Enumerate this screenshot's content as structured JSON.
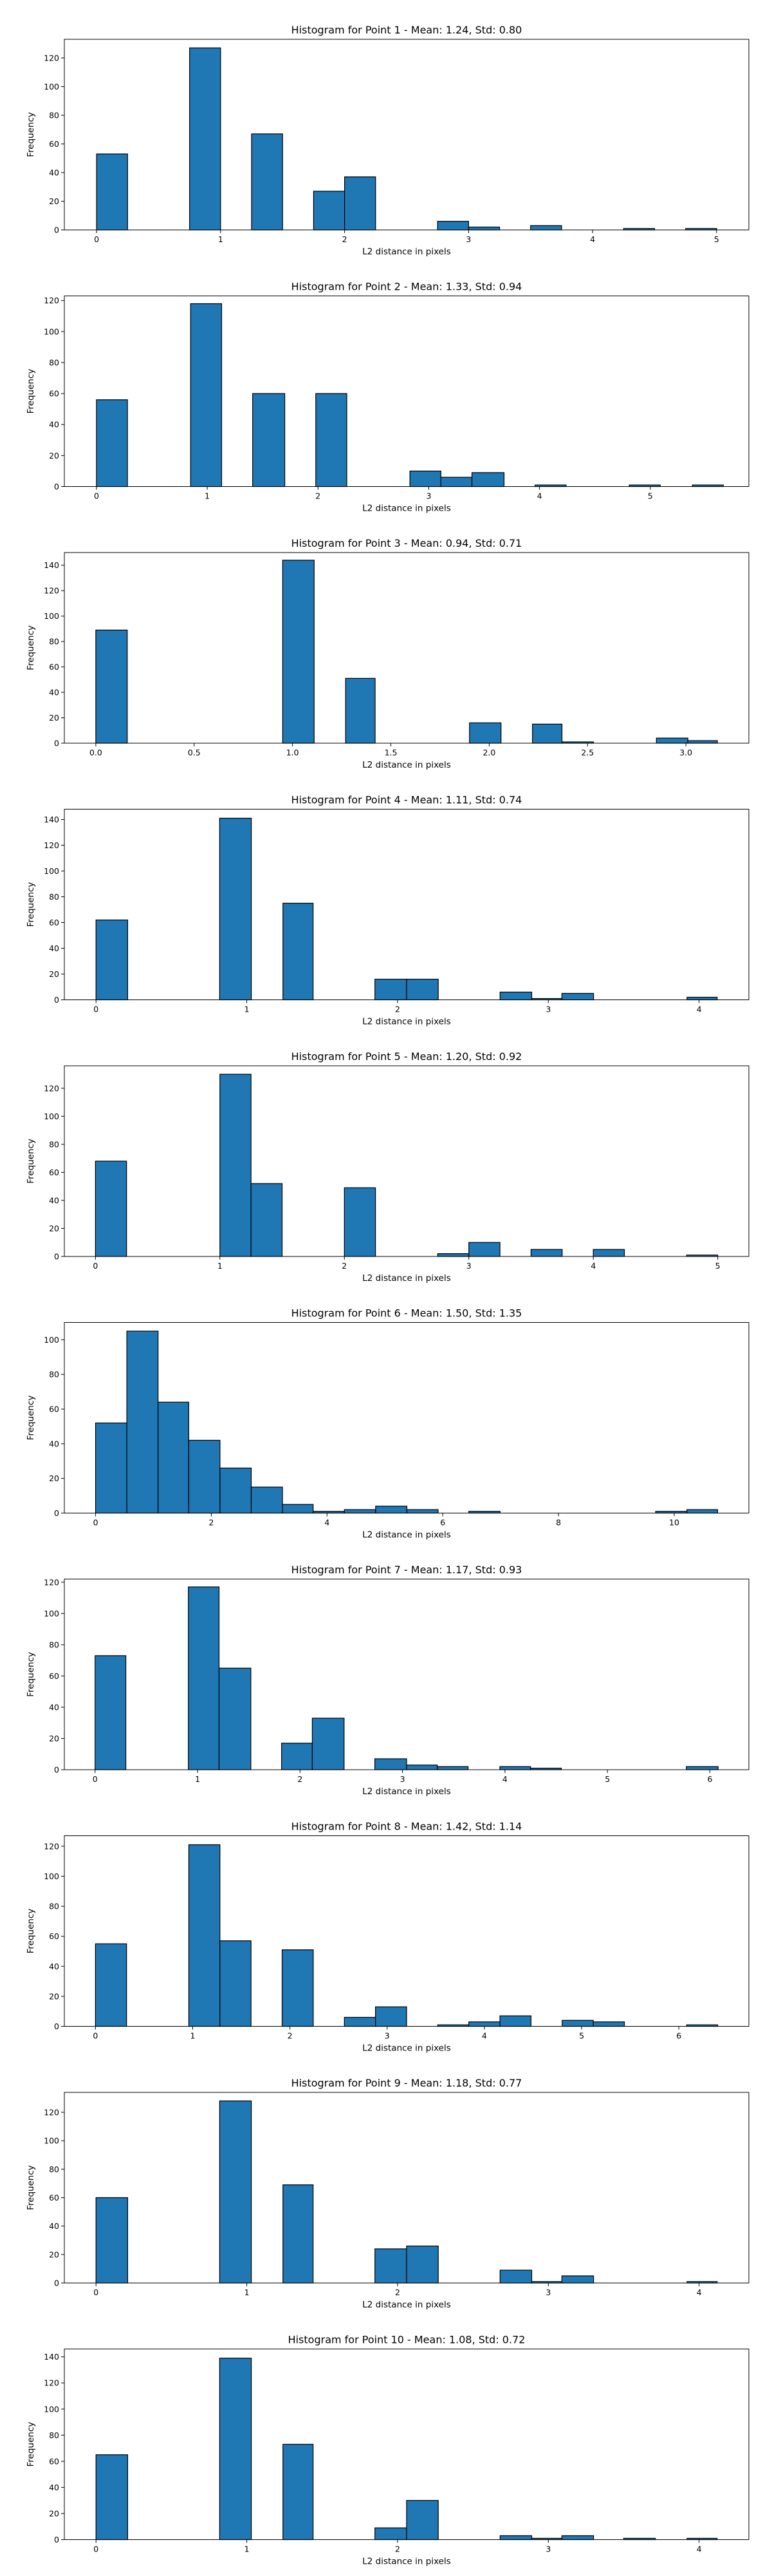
{
  "chart_data": [
    {
      "type": "bar",
      "title": "Histogram for Point 1 - Mean: 1.24, Std: 0.80",
      "xlabel": "L2 distance in pixels",
      "ylabel": "Frequency",
      "xlim": [
        -0.26,
        5.26
      ],
      "ylim": [
        0,
        133
      ],
      "xticks": [
        0,
        1,
        2,
        3,
        4,
        5
      ],
      "xtick_labels": [
        "0",
        "1",
        "2",
        "3",
        "4",
        "5"
      ],
      "yticks": [
        0,
        20,
        40,
        60,
        80,
        100,
        120
      ],
      "bins": [
        [
          0,
          0.25,
          53
        ],
        [
          0.75,
          1,
          127
        ],
        [
          1.25,
          1.5,
          67
        ],
        [
          1.75,
          2,
          27
        ],
        [
          2,
          2.25,
          37
        ],
        [
          2.75,
          3,
          6
        ],
        [
          3,
          3.25,
          2
        ],
        [
          3.5,
          3.75,
          3
        ],
        [
          4.25,
          4.5,
          1
        ],
        [
          4.75,
          5,
          1
        ]
      ]
    },
    {
      "type": "bar",
      "title": "Histogram for Point 2 - Mean: 1.33, Std: 0.94",
      "xlabel": "L2 distance in pixels",
      "ylabel": "Frequency",
      "xlim": [
        -0.29,
        5.89
      ],
      "ylim": [
        0,
        123
      ],
      "xticks": [
        0,
        1,
        2,
        3,
        4,
        5
      ],
      "xtick_labels": [
        "0",
        "1",
        "2",
        "3",
        "4",
        "5"
      ],
      "yticks": [
        0,
        20,
        40,
        60,
        80,
        100,
        120
      ],
      "bins": [
        [
          0,
          0.28,
          56
        ],
        [
          0.85,
          1.13,
          118
        ],
        [
          1.41,
          1.7,
          60
        ],
        [
          1.98,
          2.26,
          60
        ],
        [
          2.83,
          3.11,
          10
        ],
        [
          3.11,
          3.39,
          6
        ],
        [
          3.39,
          3.68,
          9
        ],
        [
          3.96,
          4.24,
          1
        ],
        [
          4.81,
          5.09,
          1
        ],
        [
          5.38,
          5.66,
          1
        ]
      ]
    },
    {
      "type": "bar",
      "title": "Histogram for Point 3 - Mean: 0.94, Std: 0.71",
      "xlabel": "L2 distance in pixels",
      "ylabel": "Frequency",
      "xlim": [
        -0.16,
        3.32
      ],
      "ylim": [
        0,
        150
      ],
      "xticks": [
        0.0,
        0.5,
        1.0,
        1.5,
        2.0,
        2.5,
        3.0
      ],
      "xtick_labels": [
        "0.0",
        "0.5",
        "1.0",
        "1.5",
        "2.0",
        "2.5",
        "3.0"
      ],
      "yticks": [
        0,
        20,
        40,
        60,
        80,
        100,
        120,
        140
      ],
      "bins": [
        [
          0,
          0.16,
          89
        ],
        [
          0.95,
          1.11,
          144
        ],
        [
          1.27,
          1.42,
          51
        ],
        [
          1.9,
          2.06,
          16
        ],
        [
          2.22,
          2.37,
          15
        ],
        [
          2.37,
          2.53,
          1
        ],
        [
          2.85,
          3.01,
          4
        ],
        [
          3.01,
          3.16,
          2
        ]
      ]
    },
    {
      "type": "bar",
      "title": "Histogram for Point 4 - Mean: 1.11, Std: 0.74",
      "xlabel": "L2 distance in pixels",
      "ylabel": "Frequency",
      "xlim": [
        -0.21,
        4.33
      ],
      "ylim": [
        0,
        148
      ],
      "xticks": [
        0,
        1,
        2,
        3,
        4
      ],
      "xtick_labels": [
        "0",
        "1",
        "2",
        "3",
        "4"
      ],
      "yticks": [
        0,
        20,
        40,
        60,
        80,
        100,
        120,
        140
      ],
      "bins": [
        [
          0,
          0.21,
          62
        ],
        [
          0.82,
          1.03,
          141
        ],
        [
          1.24,
          1.44,
          75
        ],
        [
          1.85,
          2.06,
          16
        ],
        [
          2.06,
          2.27,
          16
        ],
        [
          2.68,
          2.89,
          6
        ],
        [
          2.89,
          3.09,
          1
        ],
        [
          3.09,
          3.3,
          5
        ],
        [
          3.92,
          4.12,
          2
        ]
      ]
    },
    {
      "type": "bar",
      "title": "Histogram for Point 5 - Mean: 1.20, Std: 0.92",
      "xlabel": "L2 distance in pixels",
      "ylabel": "Frequency",
      "xlim": [
        -0.25,
        5.25
      ],
      "ylim": [
        0,
        136
      ],
      "xticks": [
        0,
        1,
        2,
        3,
        4,
        5
      ],
      "xtick_labels": [
        "0",
        "1",
        "2",
        "3",
        "4",
        "5"
      ],
      "yticks": [
        0,
        20,
        40,
        60,
        80,
        100,
        120
      ],
      "bins": [
        [
          0,
          0.25,
          68
        ],
        [
          1,
          1.25,
          130
        ],
        [
          1.25,
          1.5,
          52
        ],
        [
          2,
          2.25,
          49
        ],
        [
          2.75,
          3,
          2
        ],
        [
          3,
          3.25,
          10
        ],
        [
          3.5,
          3.75,
          5
        ],
        [
          4,
          4.25,
          5
        ],
        [
          4.75,
          5,
          1
        ]
      ]
    },
    {
      "type": "bar",
      "title": "Histogram for Point 6 - Mean: 1.50, Std: 1.35",
      "xlabel": "L2 distance in pixels",
      "ylabel": "Frequency",
      "xlim": [
        -0.54,
        11.29
      ],
      "ylim": [
        0,
        110
      ],
      "xticks": [
        0,
        2,
        4,
        6,
        8,
        10
      ],
      "xtick_labels": [
        "0",
        "2",
        "4",
        "6",
        "8",
        "10"
      ],
      "yticks": [
        0,
        20,
        40,
        60,
        80,
        100
      ],
      "bins": [
        [
          0,
          0.54,
          52
        ],
        [
          0.54,
          1.08,
          105
        ],
        [
          1.08,
          1.61,
          64
        ],
        [
          1.61,
          2.15,
          42
        ],
        [
          2.15,
          2.69,
          26
        ],
        [
          2.69,
          3.23,
          15
        ],
        [
          3.23,
          3.76,
          5
        ],
        [
          3.76,
          4.3,
          1
        ],
        [
          4.3,
          4.84,
          2
        ],
        [
          4.84,
          5.38,
          4
        ],
        [
          5.38,
          5.92,
          2
        ],
        [
          6.45,
          6.99,
          1
        ],
        [
          9.68,
          10.22,
          1
        ],
        [
          10.22,
          10.75,
          2
        ]
      ]
    },
    {
      "type": "bar",
      "title": "Histogram for Point 7 - Mean: 1.17, Std: 0.93",
      "xlabel": "L2 distance in pixels",
      "ylabel": "Frequency",
      "xlim": [
        -0.3,
        6.38
      ],
      "ylim": [
        0,
        122
      ],
      "xticks": [
        0,
        1,
        2,
        3,
        4,
        5,
        6
      ],
      "xtick_labels": [
        "0",
        "1",
        "2",
        "3",
        "4",
        "5",
        "6"
      ],
      "yticks": [
        0,
        20,
        40,
        60,
        80,
        100,
        120
      ],
      "bins": [
        [
          0,
          0.3,
          73
        ],
        [
          0.91,
          1.21,
          117
        ],
        [
          1.21,
          1.52,
          65
        ],
        [
          1.82,
          2.12,
          17
        ],
        [
          2.12,
          2.43,
          33
        ],
        [
          2.73,
          3.04,
          7
        ],
        [
          3.04,
          3.34,
          3
        ],
        [
          3.34,
          3.64,
          2
        ],
        [
          3.95,
          4.25,
          2
        ],
        [
          4.25,
          4.55,
          1
        ],
        [
          5.77,
          6.08,
          2
        ]
      ]
    },
    {
      "type": "bar",
      "title": "Histogram for Point 8 - Mean: 1.42, Std: 1.14",
      "xlabel": "L2 distance in pixels",
      "ylabel": "Frequency",
      "xlim": [
        -0.32,
        6.72
      ],
      "ylim": [
        0,
        127
      ],
      "xticks": [
        0,
        1,
        2,
        3,
        4,
        5,
        6
      ],
      "xtick_labels": [
        "0",
        "1",
        "2",
        "3",
        "4",
        "5",
        "6"
      ],
      "yticks": [
        0,
        20,
        40,
        60,
        80,
        100,
        120
      ],
      "bins": [
        [
          0,
          0.32,
          55
        ],
        [
          0.96,
          1.28,
          121
        ],
        [
          1.28,
          1.6,
          57
        ],
        [
          1.92,
          2.24,
          51
        ],
        [
          2.56,
          2.88,
          6
        ],
        [
          2.88,
          3.2,
          13
        ],
        [
          3.52,
          3.84,
          1
        ],
        [
          3.84,
          4.16,
          3
        ],
        [
          4.16,
          4.48,
          7
        ],
        [
          4.8,
          5.12,
          4
        ],
        [
          5.12,
          5.44,
          3
        ],
        [
          6.08,
          6.4,
          1
        ]
      ]
    },
    {
      "type": "bar",
      "title": "Histogram for Point 9 - Mean: 1.18, Std: 0.77",
      "xlabel": "L2 distance in pixels",
      "ylabel": "Frequency",
      "xlim": [
        -0.21,
        4.33
      ],
      "ylim": [
        0,
        134
      ],
      "xticks": [
        0,
        1,
        2,
        3,
        4
      ],
      "xtick_labels": [
        "0",
        "1",
        "2",
        "3",
        "4"
      ],
      "yticks": [
        0,
        20,
        40,
        60,
        80,
        100,
        120
      ],
      "bins": [
        [
          0,
          0.21,
          60
        ],
        [
          0.82,
          1.03,
          128
        ],
        [
          1.24,
          1.44,
          69
        ],
        [
          1.85,
          2.06,
          24
        ],
        [
          2.06,
          2.27,
          26
        ],
        [
          2.68,
          2.89,
          9
        ],
        [
          2.89,
          3.09,
          1
        ],
        [
          3.09,
          3.3,
          5
        ],
        [
          3.92,
          4.12,
          1
        ]
      ]
    },
    {
      "type": "bar",
      "title": "Histogram for Point 10 - Mean: 1.08, Std: 0.72",
      "xlabel": "L2 distance in pixels",
      "ylabel": "Frequency",
      "xlim": [
        -0.21,
        4.33
      ],
      "ylim": [
        0,
        146
      ],
      "xticks": [
        0,
        1,
        2,
        3,
        4
      ],
      "xtick_labels": [
        "0",
        "1",
        "2",
        "3",
        "4"
      ],
      "yticks": [
        0,
        20,
        40,
        60,
        80,
        100,
        120,
        140
      ],
      "bins": [
        [
          0,
          0.21,
          65
        ],
        [
          0.82,
          1.03,
          139
        ],
        [
          1.24,
          1.44,
          73
        ],
        [
          1.85,
          2.06,
          9
        ],
        [
          2.06,
          2.27,
          30
        ],
        [
          2.68,
          2.89,
          3
        ],
        [
          2.89,
          3.09,
          1
        ],
        [
          3.09,
          3.3,
          3
        ],
        [
          3.5,
          3.71,
          1
        ],
        [
          3.92,
          4.12,
          1
        ]
      ]
    }
  ],
  "style": {
    "bar_color": "#1f77b4",
    "bar_edge": "#000000"
  }
}
